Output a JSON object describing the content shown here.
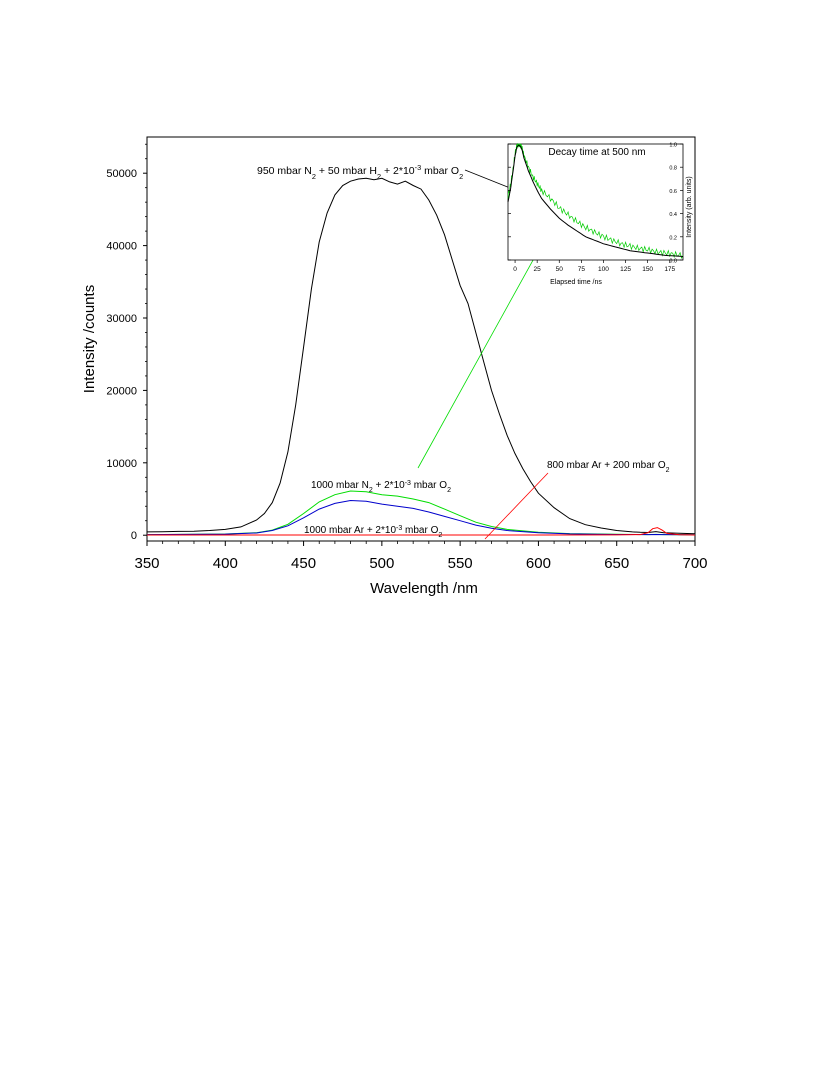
{
  "chart_data": {
    "type": "line",
    "xlabel": "Wavelength /nm",
    "ylabel": "Intensity /counts",
    "xlim": [
      350,
      700
    ],
    "ylim": [
      -800,
      55000
    ],
    "xticks": [
      350,
      400,
      450,
      500,
      550,
      600,
      650,
      700
    ],
    "yticks": [
      0,
      10000,
      20000,
      30000,
      40000,
      50000
    ],
    "grid": false,
    "series": [
      {
        "name": "950 mbar N2 + 50 mbar H2 + 2*10^-3 mbar O2",
        "color": "#000000",
        "x": [
          350,
          360,
          370,
          380,
          390,
          400,
          410,
          420,
          425,
          430,
          435,
          440,
          445,
          450,
          455,
          460,
          465,
          470,
          475,
          480,
          485,
          490,
          495,
          500,
          505,
          510,
          515,
          520,
          525,
          530,
          535,
          540,
          545,
          550,
          555,
          560,
          565,
          570,
          575,
          580,
          585,
          590,
          595,
          600,
          610,
          620,
          630,
          640,
          650,
          660,
          665,
          670,
          675,
          680,
          690,
          700
        ],
        "y": [
          450,
          480,
          520,
          560,
          650,
          800,
          1150,
          2100,
          3000,
          4500,
          7200,
          11500,
          18000,
          26000,
          34000,
          40500,
          44500,
          47000,
          48300,
          48900,
          49200,
          49300,
          49100,
          49300,
          48800,
          48500,
          48900,
          48300,
          47800,
          46300,
          44200,
          41500,
          38000,
          34500,
          32000,
          28000,
          24000,
          20000,
          16800,
          13800,
          11300,
          9200,
          7400,
          5800,
          3800,
          2300,
          1450,
          1000,
          650,
          450,
          400,
          380,
          500,
          350,
          280,
          200
        ]
      },
      {
        "name": "1000 mbar N2 + 2*10^-3 mbar O2",
        "color": "#00dd00",
        "x": [
          350,
          400,
          420,
          430,
          440,
          450,
          460,
          470,
          480,
          490,
          500,
          510,
          520,
          530,
          540,
          550,
          560,
          570,
          580,
          600,
          620,
          650,
          670,
          675,
          680,
          700
        ],
        "y": [
          80,
          160,
          350,
          700,
          1500,
          3000,
          4600,
          5600,
          6100,
          6000,
          5600,
          5400,
          5000,
          4500,
          3600,
          2700,
          1800,
          1200,
          800,
          420,
          220,
          120,
          90,
          110,
          90,
          60
        ]
      },
      {
        "name": "1000 mbar Ar + 2*10^-3 mbar O2",
        "color": "#0000cc",
        "x": [
          350,
          400,
          420,
          430,
          440,
          450,
          460,
          470,
          480,
          490,
          500,
          510,
          520,
          530,
          540,
          550,
          560,
          570,
          580,
          600,
          620,
          650,
          670,
          675,
          680,
          700
        ],
        "y": [
          80,
          150,
          300,
          650,
          1300,
          2400,
          3600,
          4400,
          4800,
          4700,
          4300,
          4000,
          3700,
          3200,
          2600,
          2000,
          1400,
          950,
          650,
          330,
          180,
          100,
          80,
          100,
          80,
          50
        ]
      },
      {
        "name": "800 mbar Ar + 200 mbar O2",
        "color": "#ff0000",
        "x": [
          350,
          400,
          450,
          500,
          550,
          600,
          650,
          665,
          670,
          673,
          676,
          679,
          682,
          690,
          700
        ],
        "y": [
          30,
          30,
          30,
          30,
          30,
          30,
          40,
          80,
          350,
          900,
          1050,
          700,
          250,
          60,
          30
        ]
      }
    ],
    "annotations": [
      {
        "label_id": "black",
        "text_parts": [
          "950 mbar N",
          "2",
          " + 50 mbar H",
          "2",
          " + 2*10",
          "-3",
          " mbar O",
          "2"
        ],
        "color": "#000000"
      },
      {
        "label_id": "green",
        "text_parts": [
          "1000 mbar N",
          "2",
          " + 2*10",
          "-3",
          " mbar O",
          "2"
        ],
        "color": "#00cc00"
      },
      {
        "label_id": "blue",
        "text_parts": [
          "1000 mbar Ar + 2*10",
          "-3",
          " mbar O",
          "2"
        ],
        "color": "#0000cc"
      },
      {
        "label_id": "red",
        "text_parts": [
          "800 mbar Ar + 200 mbar O",
          "2"
        ],
        "color": "#ff0000"
      }
    ],
    "inset": {
      "type": "line",
      "title": "Decay time at 500 nm",
      "xlabel": "Elapsed time /ns",
      "ylabel": "Intensity (arb. units)",
      "xlim": [
        -8,
        190
      ],
      "ylim": [
        0,
        1.0
      ],
      "xticks": [
        0,
        25,
        50,
        75,
        100,
        125,
        150,
        175
      ],
      "yticks": [
        0.0,
        0.2,
        0.4,
        0.6,
        0.8,
        1.0
      ],
      "ytick_labels": [
        "0.0",
        "0.2",
        "0.4",
        "0.6",
        "0.8",
        "1.0"
      ],
      "series": [
        {
          "color": "#00cc00",
          "x": [
            -8,
            -5,
            -2,
            0,
            2,
            4,
            6,
            8,
            10,
            15,
            20,
            25,
            30,
            40,
            50,
            60,
            70,
            80,
            90,
            100,
            110,
            120,
            130,
            140,
            150,
            160,
            170,
            180,
            190
          ],
          "y": [
            0.55,
            0.65,
            0.8,
            0.92,
            0.98,
            1.0,
            0.99,
            0.96,
            0.9,
            0.8,
            0.72,
            0.66,
            0.6,
            0.53,
            0.45,
            0.39,
            0.33,
            0.28,
            0.24,
            0.2,
            0.17,
            0.14,
            0.12,
            0.1,
            0.09,
            0.07,
            0.06,
            0.05,
            0.04
          ]
        },
        {
          "color": "#000000",
          "x": [
            -8,
            -5,
            -2,
            0,
            2,
            4,
            6,
            8,
            10,
            15,
            20,
            25,
            30,
            40,
            50,
            60,
            70,
            80,
            90,
            100,
            110,
            120,
            130,
            140,
            150,
            160,
            170,
            180,
            190
          ],
          "y": [
            0.5,
            0.62,
            0.78,
            0.9,
            0.97,
            0.99,
            0.98,
            0.95,
            0.88,
            0.77,
            0.68,
            0.6,
            0.53,
            0.44,
            0.36,
            0.3,
            0.25,
            0.2,
            0.17,
            0.14,
            0.12,
            0.1,
            0.08,
            0.07,
            0.06,
            0.05,
            0.04,
            0.035,
            0.03
          ]
        }
      ]
    }
  }
}
